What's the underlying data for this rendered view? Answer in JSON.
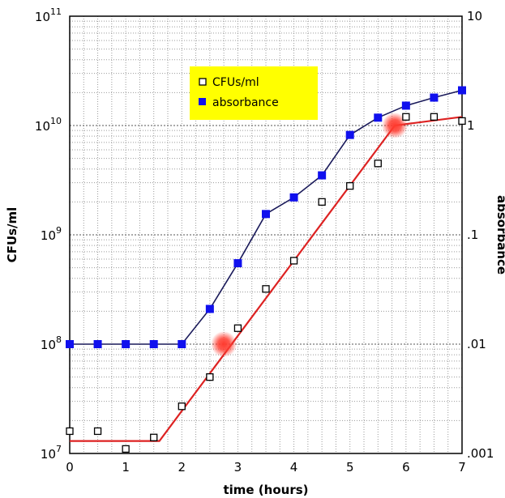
{
  "chart_data": {
    "type": "scatter",
    "xlabel": "time (hours)",
    "ylabel": "CFUs/ml",
    "ylabel_right": "absorbance",
    "xlim": [
      0,
      7
    ],
    "ylim": [
      10000000,
      100000000000
    ],
    "y_scale": "log",
    "ylim_right": [
      0.001,
      10
    ],
    "y_right_scale": "log",
    "grid": true,
    "legend_placement": "top-left",
    "x_ticks": [
      "0",
      "1",
      "2",
      "3",
      "4",
      "5",
      "6",
      "7"
    ],
    "y_ticks_left": [
      {
        "base": "10",
        "exp": "7",
        "value": 10000000
      },
      {
        "base": "10",
        "exp": "8",
        "value": 100000000
      },
      {
        "base": "10",
        "exp": "9",
        "value": 1000000000
      },
      {
        "base": "10",
        "exp": "10",
        "value": 10000000000
      },
      {
        "base": "10",
        "exp": "11",
        "value": 100000000000
      }
    ],
    "y_ticks_right": [
      {
        "label": ".001",
        "value": 0.001
      },
      {
        "label": ".01",
        "value": 0.01
      },
      {
        "label": ".1",
        "value": 0.1
      },
      {
        "label": "1",
        "value": 1
      },
      {
        "label": "10",
        "value": 10
      }
    ],
    "series": [
      {
        "name": "CFUs/ml",
        "axis": "left",
        "marker": "open-square",
        "color": "#000000",
        "x": [
          0,
          0.5,
          1,
          1.5,
          2,
          2.5,
          3,
          3.5,
          4,
          4.5,
          5,
          5.5,
          6,
          6.5,
          7
        ],
        "y": [
          16000000,
          16000000,
          11000000,
          14000000,
          27000000,
          50000000,
          140000000,
          320000000,
          580000000,
          2000000000,
          2800000000,
          4500000000,
          12000000000,
          12000000000,
          11000000000
        ]
      },
      {
        "name": "absorbance",
        "axis": "right",
        "marker": "filled-square",
        "color": "#1010ee",
        "connect": true,
        "x": [
          0,
          0.5,
          1,
          1.5,
          2,
          2.5,
          3,
          3.5,
          4,
          4.5,
          5,
          5.5,
          6,
          6.5,
          7
        ],
        "y": [
          0.01,
          0.01,
          0.01,
          0.01,
          0.01,
          0.021,
          0.055,
          0.155,
          0.22,
          0.35,
          0.82,
          1.18,
          1.52,
          1.8,
          2.1
        ]
      }
    ],
    "fit_line": {
      "axis": "left",
      "color": "#dd2222",
      "x": [
        0,
        1.6,
        5.8,
        7
      ],
      "y": [
        13000000,
        13000000,
        10000000000,
        12000000000
      ]
    },
    "highlight_points": [
      {
        "axis": "left",
        "x": 2.75,
        "y": 100000000,
        "color": "#ff3b2f"
      },
      {
        "axis": "left",
        "x": 5.8,
        "y": 10000000000,
        "color": "#ff3b2f"
      }
    ],
    "legend_bg": "#ffff00"
  }
}
